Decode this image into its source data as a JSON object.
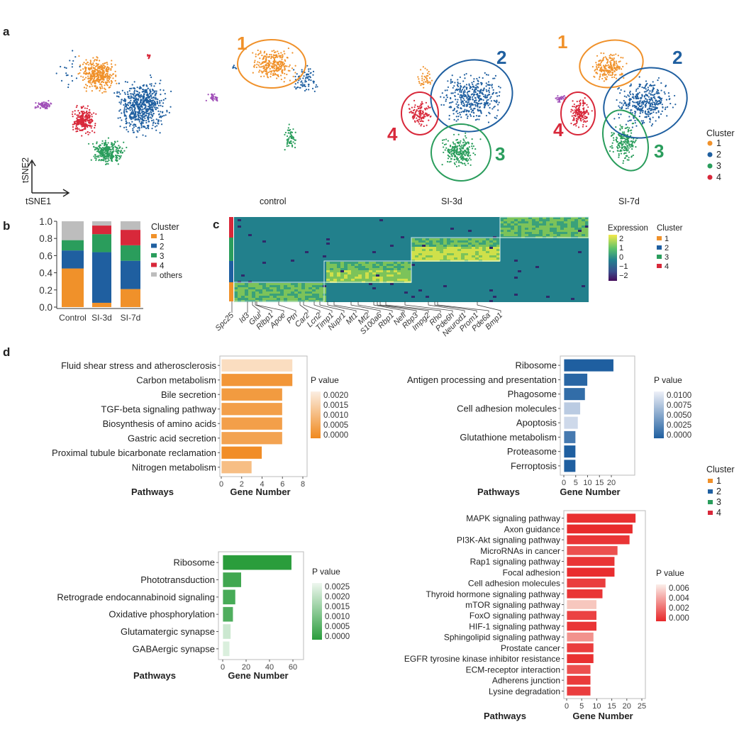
{
  "panel_labels": {
    "a": "a",
    "b": "b",
    "c": "c",
    "d": "d"
  },
  "tsne": {
    "axis_x": "tSNE1",
    "axis_y": "tSNE2",
    "captions": [
      "control",
      "SI-3d",
      "SI-7d"
    ],
    "cluster_numbers": [
      "1",
      "2",
      "3",
      "4"
    ],
    "legend_title": "Cluster",
    "legend_items": [
      "1",
      "2",
      "3",
      "4"
    ]
  },
  "colors": {
    "c1": "#f0912a",
    "c2": "#1f5fa0",
    "c3": "#2a9d5c",
    "c4": "#d8283a",
    "others": "#bdbdbd",
    "purple": "#a04fb8"
  },
  "heatmap": {
    "type": "heatmap",
    "legend_title": "Expression",
    "scale_labels": [
      "2",
      "1",
      "0",
      "−1",
      "−2"
    ],
    "cluster_legend_title": "Cluster",
    "cluster_legend_items": [
      "1",
      "2",
      "3",
      "4"
    ],
    "genes": [
      "Spc25",
      "Id3",
      "Glul",
      "Rlbp1",
      "Apoe",
      "Ptn",
      "Car2",
      "Lcn2",
      "Timp1",
      "Nupr1",
      "Mt1",
      "Mt2",
      "S100a6",
      "Rbp1",
      "Nefl",
      "Rbp3",
      "Impg2",
      "Rho",
      "Pde6h",
      "Neurod1",
      "Prom1",
      "Pde6a",
      "Bmp1"
    ]
  },
  "d_legend": {
    "title": "Cluster",
    "items": [
      "1",
      "2",
      "3",
      "4"
    ]
  },
  "chart_data": [
    {
      "type": "bar",
      "stacked": true,
      "id": "b",
      "categories": [
        "Control",
        "SI-3d",
        "SI-7d"
      ],
      "series": [
        {
          "name": "1",
          "values": [
            0.45,
            0.05,
            0.21
          ]
        },
        {
          "name": "2",
          "values": [
            0.21,
            0.59,
            0.33
          ]
        },
        {
          "name": "3",
          "values": [
            0.12,
            0.21,
            0.18
          ]
        },
        {
          "name": "4",
          "values": [
            0.0,
            0.1,
            0.18
          ]
        },
        {
          "name": "others",
          "values": [
            0.22,
            0.05,
            0.1
          ]
        }
      ],
      "yticks": [
        "0.0",
        "0.2",
        "0.4",
        "0.6",
        "0.8",
        "1.0"
      ],
      "ylim": [
        0,
        1
      ],
      "legend_title": "Cluster"
    },
    {
      "type": "bar",
      "orientation": "horizontal",
      "cluster": "1",
      "pathways": [
        "Fluid shear stress and atherosclerosis",
        "Carbon metabolism",
        "Bile secretion",
        "TGF-beta signaling pathway",
        "Biosynthesis of amino acids",
        "Gastric acid secretion",
        "Proximal tubule bicarbonate reclamation",
        "Nitrogen metabolism"
      ],
      "values": [
        7,
        7,
        6,
        6,
        6,
        6,
        4,
        3
      ],
      "p_values": [
        0.0019,
        0.0003,
        0.0004,
        0.0005,
        0.0005,
        0.0006,
        0.0001,
        0.0012
      ],
      "xticks": [
        "0",
        "2",
        "4",
        "6",
        "8"
      ],
      "xlim": [
        0,
        8
      ],
      "xlabel": "Gene Number",
      "ylabel": "Pathways",
      "legend_title": "P value",
      "legend_ticks": [
        "0.0020",
        "0.0015",
        "0.0010",
        "0.0005",
        "0.0000"
      ],
      "pmax": 0.002
    },
    {
      "type": "bar",
      "orientation": "horizontal",
      "cluster": "2",
      "pathways": [
        "Ribosome",
        "Antigen processing and presentation",
        "Phagosome",
        "Cell adhesion molecules",
        "Apoptosis",
        "Glutathione metabolism",
        "Proteasome",
        "Ferroptosis"
      ],
      "values": [
        21,
        10,
        9,
        7,
        6,
        5,
        5,
        5
      ],
      "p_values": [
        0.0,
        0.0005,
        0.001,
        0.008,
        0.009,
        0.002,
        0.0,
        0.0
      ],
      "xticks": [
        "0",
        "5",
        "10",
        "15",
        "20"
      ],
      "xlim": [
        0,
        20
      ],
      "xlabel": "Gene Number",
      "ylabel": "Pathways",
      "legend_title": "P value",
      "legend_ticks": [
        "0.0100",
        "0.0075",
        "0.0050",
        "0.0025",
        "0.0000"
      ],
      "pmax": 0.01
    },
    {
      "type": "bar",
      "orientation": "horizontal",
      "cluster": "3",
      "pathways": [
        "Ribosome",
        "Phototransduction",
        "Retrograde endocannabinoid signaling",
        "Oxidative phosphorylation",
        "Glutamatergic synapse",
        "GABAergic synapse"
      ],
      "values": [
        59,
        16,
        11,
        9,
        7,
        6
      ],
      "p_values": [
        0.0,
        0.0003,
        0.0004,
        0.0005,
        0.0022,
        0.0024
      ],
      "xticks": [
        "0",
        "20",
        "40",
        "60"
      ],
      "xlim": [
        0,
        60
      ],
      "xlabel": "Gene Number",
      "ylabel": "Pathways",
      "legend_title": "P value",
      "legend_ticks": [
        "0.0025",
        "0.0020",
        "0.0015",
        "0.0010",
        "0.0005",
        "0.0000"
      ],
      "pmax": 0.0025
    },
    {
      "type": "bar",
      "orientation": "horizontal",
      "cluster": "4",
      "pathways": [
        "MAPK signaling pathway",
        "Axon guidance",
        "PI3K-Akt signaling pathway",
        "MicroRNAs in cancer",
        "Rap1 signaling pathway",
        "Focal adhesion",
        "Cell adhesion molecules",
        "Thyroid hormone signaling pathway",
        "mTOR signaling pathway",
        "FoxO signaling pathway",
        "HIF-1 signaling pathway",
        "Sphingolipid signaling pathway",
        "Prostate cancer",
        "EGFR tyrosine kinase inhibitor resistance",
        "ECM-receptor interaction",
        "Adherens junction",
        "Lysine degradation"
      ],
      "values": [
        23,
        22,
        21,
        17,
        16,
        16,
        13,
        12,
        10,
        10,
        10,
        9,
        9,
        9,
        8,
        8,
        8
      ],
      "p_values": [
        0.0003,
        0.0001,
        0.0005,
        0.0015,
        0.0005,
        0.0002,
        0.0008,
        0.0005,
        0.006,
        0.001,
        0.0005,
        0.004,
        0.0008,
        0.0003,
        0.0015,
        0.0007,
        0.0008
      ],
      "xticks": [
        "0",
        "5",
        "10",
        "15",
        "20",
        "25"
      ],
      "xlim": [
        0,
        25
      ],
      "xlabel": "Gene Number",
      "ylabel": "Pathways",
      "legend_title": "P value",
      "legend_ticks": [
        "0.006",
        "0.004",
        "0.002",
        "0.000"
      ],
      "pmax": 0.007
    }
  ]
}
